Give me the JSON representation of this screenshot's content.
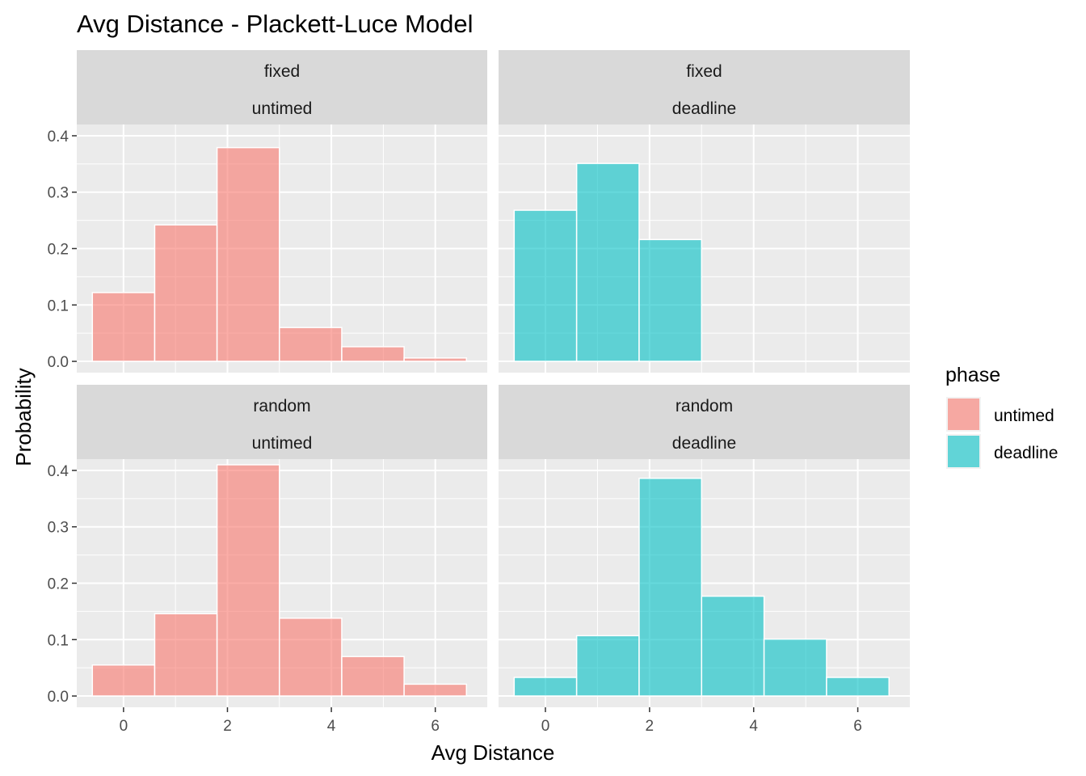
{
  "chart_data": {
    "type": "bar",
    "title": "Avg Distance - Plackett-Luce Model",
    "xlabel": "Avg Distance",
    "ylabel": "Probability",
    "xlim": [
      -0.9,
      7.0
    ],
    "ylim": [
      -0.02,
      0.42
    ],
    "x_ticks": [
      {
        "value": 0,
        "label": "0"
      },
      {
        "value": 2,
        "label": "2"
      },
      {
        "value": 4,
        "label": "4"
      },
      {
        "value": 6,
        "label": "6"
      }
    ],
    "y_ticks": [
      {
        "value": 0.0,
        "label": "0.0"
      },
      {
        "value": 0.1,
        "label": "0.1"
      },
      {
        "value": 0.2,
        "label": "0.2"
      },
      {
        "value": 0.3,
        "label": "0.3"
      },
      {
        "value": 0.4,
        "label": "0.4"
      }
    ],
    "bin_width": 1.2,
    "grid": true,
    "legend": {
      "title": "phase",
      "position": "right",
      "entries": [
        {
          "label": "untimed",
          "color": "#F8766D"
        },
        {
          "label": "deadline",
          "color": "#00BFC4"
        }
      ]
    },
    "panels": [
      {
        "strip": [
          "fixed",
          "untimed"
        ],
        "phase": "untimed",
        "color": "#F8766D",
        "bins": [
          {
            "x": 0.0,
            "y": 0.122
          },
          {
            "x": 1.2,
            "y": 0.242
          },
          {
            "x": 2.4,
            "y": 0.379
          },
          {
            "x": 3.6,
            "y": 0.06
          },
          {
            "x": 4.8,
            "y": 0.026
          },
          {
            "x": 6.0,
            "y": 0.006
          }
        ]
      },
      {
        "strip": [
          "fixed",
          "deadline"
        ],
        "phase": "deadline",
        "color": "#00BFC4",
        "bins": [
          {
            "x": 0.0,
            "y": 0.268
          },
          {
            "x": 1.2,
            "y": 0.351
          },
          {
            "x": 2.4,
            "y": 0.216
          }
        ]
      },
      {
        "strip": [
          "random",
          "untimed"
        ],
        "phase": "untimed",
        "color": "#F8766D",
        "bins": [
          {
            "x": 0.0,
            "y": 0.055
          },
          {
            "x": 1.2,
            "y": 0.146
          },
          {
            "x": 2.4,
            "y": 0.41
          },
          {
            "x": 3.6,
            "y": 0.138
          },
          {
            "x": 4.8,
            "y": 0.07
          },
          {
            "x": 6.0,
            "y": 0.021
          }
        ]
      },
      {
        "strip": [
          "random",
          "deadline"
        ],
        "phase": "deadline",
        "color": "#00BFC4",
        "bins": [
          {
            "x": 0.0,
            "y": 0.033
          },
          {
            "x": 1.2,
            "y": 0.107
          },
          {
            "x": 2.4,
            "y": 0.386
          },
          {
            "x": 3.6,
            "y": 0.177
          },
          {
            "x": 4.8,
            "y": 0.101
          },
          {
            "x": 6.0,
            "y": 0.033
          }
        ]
      }
    ]
  },
  "colors": {
    "panel_bg": "#EBEBEB",
    "strip_bg": "#D9D9D9",
    "grid": "#FFFFFF",
    "text": "#000000",
    "tick_text": "#4D4D4D"
  }
}
